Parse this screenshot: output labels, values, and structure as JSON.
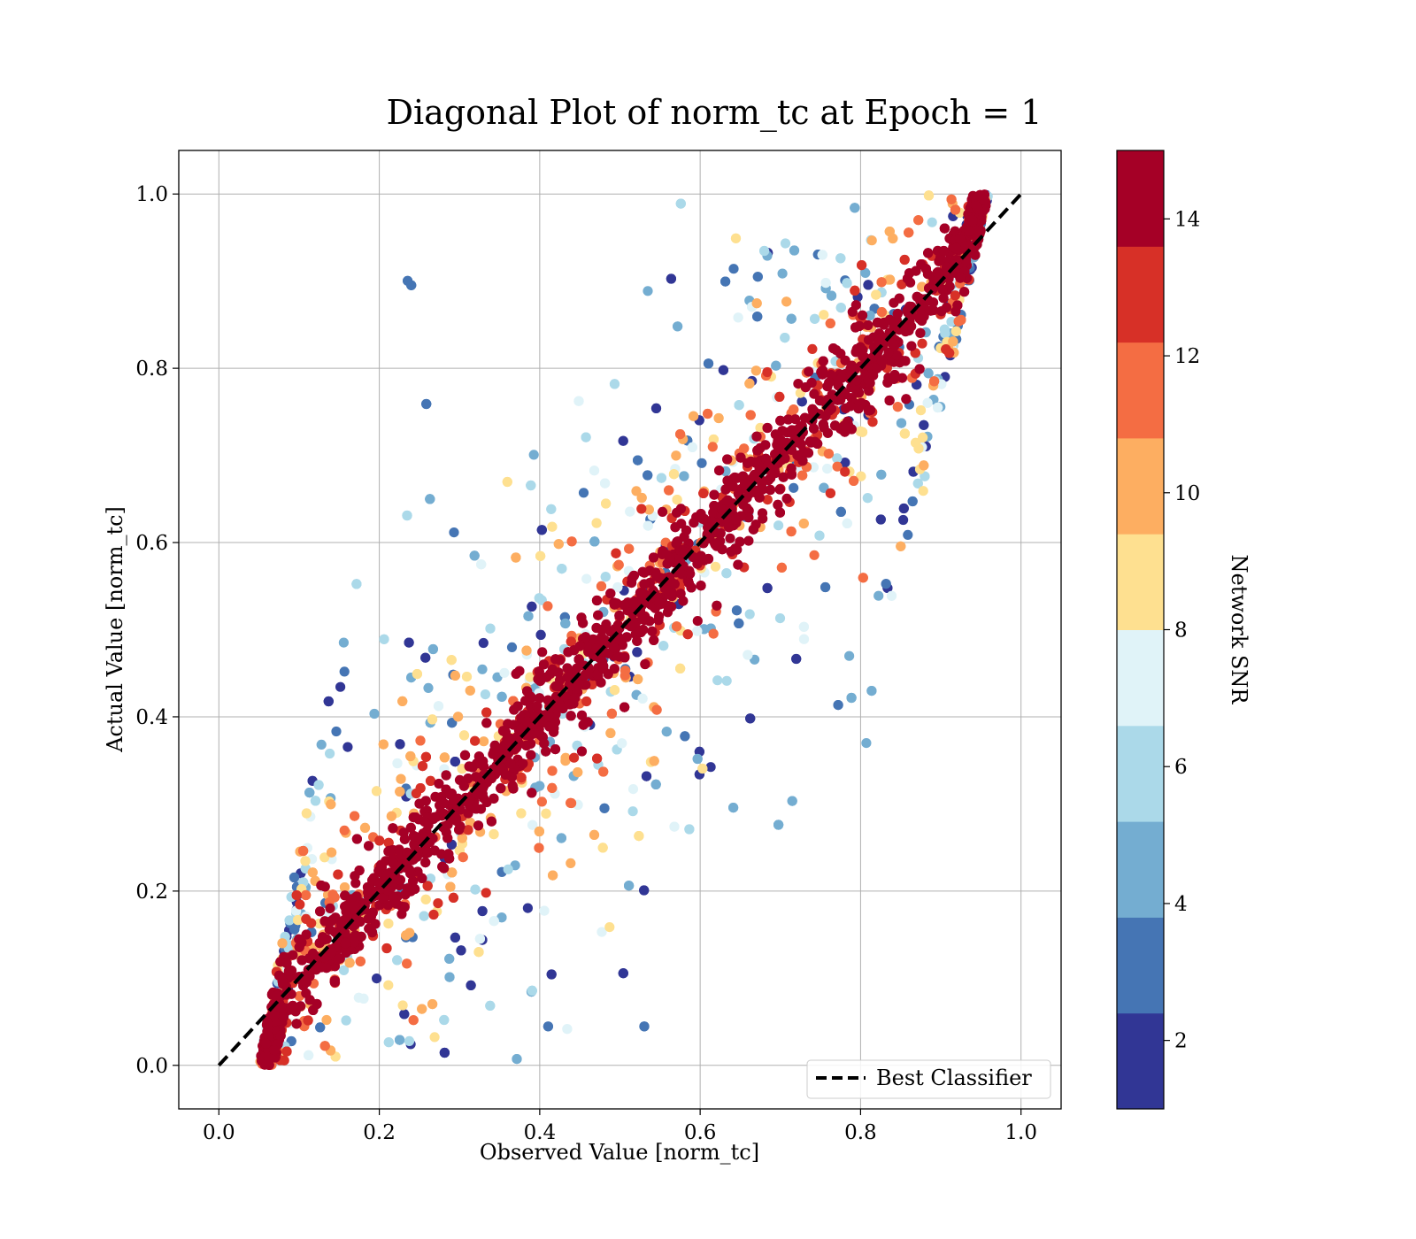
{
  "chart_data": {
    "type": "scatter",
    "title": "Diagonal Plot of norm_tc at Epoch = 1",
    "xlabel": "Observed Value [norm_tc]",
    "ylabel": "Actual Value [norm_tc]",
    "xlim": [
      -0.05,
      1.05
    ],
    "ylim": [
      -0.05,
      1.05
    ],
    "x_ticks": [
      "0.0",
      "0.2",
      "0.4",
      "0.6",
      "0.8",
      "1.0"
    ],
    "y_ticks": [
      "0.0",
      "0.2",
      "0.4",
      "0.6",
      "0.8",
      "1.0"
    ],
    "grid": true,
    "reference_line": {
      "name": "Best Classifier",
      "x": [
        0.0,
        1.0
      ],
      "y": [
        0.0,
        1.0
      ],
      "style": "dashed",
      "color": "#000000"
    },
    "legend": {
      "placement": "lower-right",
      "entries": [
        "Best Classifier"
      ]
    },
    "point_summary": {
      "description": "Dense cloud of predictions around the diagonal; color encodes Network SNR",
      "observed_range": [
        0.05,
        0.96
      ],
      "actual_range": [
        0.0,
        1.0
      ]
    },
    "colorbar": {
      "label": "Network SNR",
      "range": [
        1,
        15
      ],
      "tick_values": [
        2,
        4,
        6,
        8,
        10,
        12,
        14
      ],
      "tick_labels": [
        "2",
        "4",
        "6",
        "8",
        "10",
        "12",
        "14"
      ],
      "levels": [
        {
          "from": 1.0,
          "to": 2.4,
          "color": "#313695"
        },
        {
          "from": 2.4,
          "to": 3.8,
          "color": "#4575b4"
        },
        {
          "from": 3.8,
          "to": 5.2,
          "color": "#74add1"
        },
        {
          "from": 5.2,
          "to": 6.6,
          "color": "#abd9e9"
        },
        {
          "from": 6.6,
          "to": 8.0,
          "color": "#e0f3f8"
        },
        {
          "from": 8.0,
          "to": 9.4,
          "color": "#fee090"
        },
        {
          "from": 9.4,
          "to": 10.8,
          "color": "#fdae61"
        },
        {
          "from": 10.8,
          "to": 12.2,
          "color": "#f46d43"
        },
        {
          "from": 12.2,
          "to": 13.6,
          "color": "#d73027"
        },
        {
          "from": 13.6,
          "to": 15.0,
          "color": "#a50026"
        }
      ]
    }
  }
}
